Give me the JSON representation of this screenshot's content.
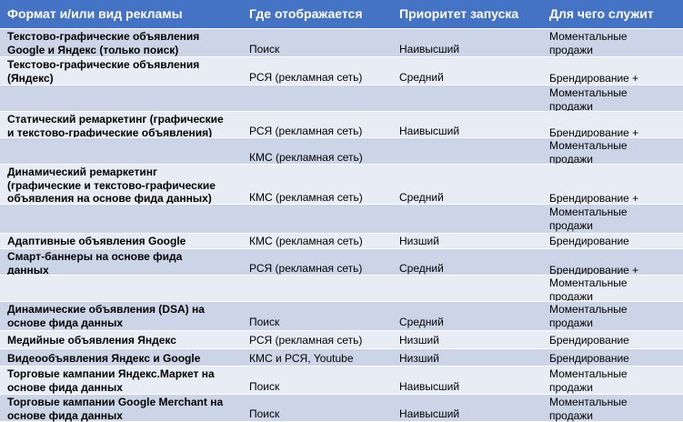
{
  "headers": {
    "format": "Формат и/или вид рекламы",
    "where": "Где отображается",
    "priority": "Приоритет запуска",
    "purpose": "Для чего служит"
  },
  "rows": [
    {
      "format": "Текстово-графические объявления\nGoogle и Яндекс (только поиск)",
      "where": "Поиск",
      "priority": "Наивысший",
      "purpose": "Моментальные\nпродажи"
    },
    {
      "format": "Текстово-графические объявления\n(Яндекс)",
      "where": "РСЯ (рекламная сеть)",
      "priority": "Средний",
      "purpose": "\nБрендирование +"
    },
    {
      "format": "",
      "where": "",
      "priority": "",
      "purpose": "Моментальные\nпродажи"
    },
    {
      "format": "Статический ремаркетинг (графические\nи текстово-графические объявления)",
      "where": "РСЯ (рекламная сеть)",
      "priority": "Наивысший",
      "purpose": "\nБрендирование +"
    },
    {
      "format": "",
      "where": "КМС (рекламная сеть)",
      "priority": "",
      "purpose": "Моментальные\nпродажи"
    },
    {
      "format": "Динамический ремаркетинг\n(графические и текстово-графические\nобъявления на основе фида данных)",
      "where": "КМС (рекламная сеть)",
      "priority": "Средний",
      "purpose": "\n\nБрендирование +"
    },
    {
      "format": "",
      "where": "",
      "priority": "",
      "purpose": "Моментальные\nпродажи"
    },
    {
      "format": "Адаптивные объявления Google",
      "where": "КМС (рекламная сеть)",
      "priority": "Низший",
      "purpose": "Брендирование"
    },
    {
      "format": "Смарт-баннеры на основе фида\nданных",
      "where": "РСЯ (рекламная сеть)",
      "priority": "Средний",
      "purpose": "\nБрендирование +"
    },
    {
      "format": "",
      "where": "",
      "priority": "",
      "purpose": "Моментальные\nпродажи"
    },
    {
      "format": "Динамические объявления (DSA) на\nосновe фида данных",
      "where": "Поиск",
      "priority": "Средний",
      "purpose": "Моментальные\nпродажи"
    },
    {
      "format": "Медийные объявления Яндекс",
      "where": "РСЯ (рекламная сеть)",
      "priority": "Низший",
      "purpose": "Брендирование"
    },
    {
      "format": "Видеообъявления Яндекс и Google",
      "where": "КМС и РСЯ, Youtube",
      "priority": "Низший",
      "purpose": "Брендирование"
    },
    {
      "format": "Торговые кампании Яндекс.Маркет на\nоснове фида данных",
      "where": "Поиск",
      "priority": "Наивысший",
      "purpose": "Моментальные\nпродажи"
    },
    {
      "format": "Торговые кампании Google Merchant на\nоснове фида данных",
      "where": "Поиск",
      "priority": "Наивысший",
      "purpose": "Моментальные\nпродажи"
    }
  ]
}
